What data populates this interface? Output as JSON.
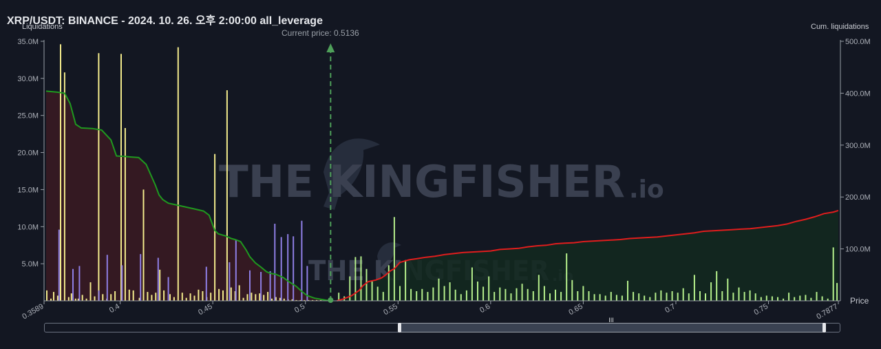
{
  "header": {
    "title": "XRP/USDT: BINANCE - 2024. 10. 26. 오후 2:00:00 all_leverage",
    "left_axis_name": "Liquidations",
    "right_axis_name": "Cum. liquidations",
    "price_axis_name": "Price",
    "current_price_label": "Current price: 0.5136"
  },
  "watermark": {
    "text": "THE KINGFISHER",
    "suffix": ".io"
  },
  "colors": {
    "long_bar": "#f3eb8c",
    "short_bar": "#b6f08c",
    "purple_bar": "#8f7fe6",
    "cum_long_line": "#1f9a1f",
    "cum_short_line": "#e11d1d",
    "long_area": "#3b1a22",
    "short_area": "#13291f",
    "current_price_line": "#4fa05a"
  },
  "slider": {
    "grip_label": "III"
  },
  "chart_data": {
    "type": "bar",
    "title": "XRP/USDT: BINANCE - 2024. 10. 26. 오후 2:00:00 all_leverage",
    "xlabel": "Price",
    "ylabel_left": "Liquidations",
    "ylabel_right": "Cum. liquidations",
    "x_range": [
      0.3589,
      0.7877
    ],
    "x_ticks": [
      "0.3589",
      "0.4",
      "0.45",
      "0.5",
      "0.55",
      "0.6",
      "0.65",
      "0.7",
      "0.75",
      "0.7877"
    ],
    "x_tick_values": [
      0.3589,
      0.4,
      0.45,
      0.5,
      0.55,
      0.6,
      0.65,
      0.7,
      0.75,
      0.7877
    ],
    "ylim_left": [
      0,
      35000000
    ],
    "y_ticks_left": [
      "5.0M",
      "10.0M",
      "15.0M",
      "20.0M",
      "25.0M",
      "30.0M",
      "35.0M"
    ],
    "y_tick_values_left": [
      5000000,
      10000000,
      15000000,
      20000000,
      25000000,
      30000000,
      35000000
    ],
    "ylim_right": [
      0,
      500000000
    ],
    "y_ticks_right": [
      "100.0M",
      "200.0M",
      "300.0M",
      "400.0M",
      "500.0M"
    ],
    "y_tick_values_right": [
      100000000,
      200000000,
      300000000,
      400000000,
      500000000
    ],
    "current_price": 0.5136,
    "grid": false,
    "series": [
      {
        "name": "long_liquidations",
        "kind": "bar",
        "x": [
          0.3604,
          0.3626,
          0.3641,
          0.3663,
          0.3678,
          0.37,
          0.3722,
          0.3737,
          0.3759,
          0.3774,
          0.3796,
          0.3818,
          0.384,
          0.3862,
          0.3884,
          0.3906,
          0.3928,
          0.395,
          0.3972,
          0.4005,
          0.4027,
          0.4049,
          0.4071,
          0.4104,
          0.4126,
          0.4148,
          0.417,
          0.4192,
          0.4214,
          0.4236,
          0.4269,
          0.4291,
          0.4313,
          0.4335,
          0.4357,
          0.4379,
          0.4401,
          0.4423,
          0.4445,
          0.4467,
          0.4489,
          0.4511,
          0.4533,
          0.4555,
          0.4577,
          0.4599,
          0.4621,
          0.4643,
          0.4665,
          0.4687,
          0.4709,
          0.4731,
          0.4753,
          0.4775,
          0.4797,
          0.4819,
          0.4841,
          0.4863,
          0.4885,
          0.4907,
          0.4929,
          0.4951,
          0.4973,
          0.4995,
          0.5017,
          0.5039,
          0.5061,
          0.5083
        ],
        "values": [
          1400000,
          300000,
          1200000,
          700000,
          34600000,
          30800000,
          500000,
          1000000,
          300000,
          300000,
          800000,
          300000,
          2500000,
          600000,
          33400000,
          900000,
          300000,
          900000,
          1300000,
          33300000,
          23300000,
          1500000,
          1400000,
          400000,
          15000000,
          1200000,
          800000,
          1100000,
          4200000,
          1400000,
          900000,
          500000,
          34200000,
          1100000,
          400000,
          1000000,
          700000,
          1500000,
          1300000,
          500000,
          1100000,
          19800000,
          1600000,
          1400000,
          28400000,
          1800000,
          1300000,
          2100000,
          400000,
          900000,
          1100000,
          900000,
          1000000,
          800000,
          1200000,
          300000,
          500000,
          400000,
          300000,
          200000,
          200000,
          100000,
          100000,
          100000,
          100000,
          100000,
          100000,
          100000
        ]
      },
      {
        "name": "purple_liquidations",
        "kind": "bar",
        "x": [
          0.367,
          0.3745,
          0.378,
          0.3885,
          0.393,
          0.401,
          0.411,
          0.4205,
          0.426,
          0.4465,
          0.459,
          0.4625,
          0.47,
          0.476,
          0.481,
          0.4835,
          0.487,
          0.4905,
          0.4935,
          0.498,
          0.501
        ],
        "values": [
          9600000,
          4300000,
          4700000,
          1400000,
          6200000,
          4800000,
          6300000,
          5800000,
          3200000,
          4600000,
          5200000,
          8200000,
          4100000,
          3900000,
          4000000,
          10400000,
          8600000,
          9000000,
          8700000,
          10800000,
          4700000
        ],
        "color_key": "purple_bar"
      },
      {
        "name": "short_liquidations",
        "kind": "bar",
        "x": [
          0.518,
          0.521,
          0.524,
          0.527,
          0.53,
          0.533,
          0.536,
          0.539,
          0.542,
          0.545,
          0.548,
          0.551,
          0.554,
          0.557,
          0.56,
          0.563,
          0.566,
          0.569,
          0.572,
          0.575,
          0.578,
          0.581,
          0.584,
          0.587,
          0.59,
          0.593,
          0.596,
          0.599,
          0.602,
          0.605,
          0.608,
          0.611,
          0.614,
          0.617,
          0.62,
          0.623,
          0.626,
          0.629,
          0.632,
          0.635,
          0.638,
          0.641,
          0.644,
          0.647,
          0.65,
          0.653,
          0.656,
          0.659,
          0.662,
          0.665,
          0.668,
          0.671,
          0.674,
          0.677,
          0.68,
          0.683,
          0.686,
          0.689,
          0.692,
          0.695,
          0.698,
          0.701,
          0.704,
          0.707,
          0.71,
          0.713,
          0.716,
          0.719,
          0.722,
          0.725,
          0.728,
          0.731,
          0.734,
          0.737,
          0.74,
          0.743,
          0.746,
          0.749,
          0.752,
          0.755,
          0.758,
          0.761,
          0.764,
          0.767,
          0.77,
          0.773,
          0.776,
          0.779,
          0.782,
          0.785,
          0.787
        ],
        "values": [
          1100000,
          600000,
          3300000,
          5900000,
          6000000,
          4300000,
          2600000,
          1900000,
          1200000,
          4800000,
          11300000,
          2000000,
          5500000,
          1600000,
          1300000,
          1600000,
          1200000,
          1800000,
          3000000,
          2000000,
          2500000,
          1500000,
          900000,
          1400000,
          4500000,
          2600000,
          1900000,
          3300000,
          1200000,
          1800000,
          1600000,
          1000000,
          1700000,
          2300000,
          1600000,
          1300000,
          3500000,
          2000000,
          1000000,
          1500000,
          1200000,
          6400000,
          2800000,
          1300000,
          2000000,
          1300000,
          900000,
          900000,
          700000,
          1200000,
          800000,
          700000,
          2700000,
          1200000,
          1000000,
          700000,
          500000,
          1100000,
          1400000,
          1100000,
          1300000,
          1100000,
          1700000,
          1000000,
          3500000,
          1300000,
          1000000,
          2500000,
          4000000,
          1300000,
          3000000,
          1100000,
          1800000,
          1200000,
          1400000,
          1000000,
          500000,
          700000,
          600000,
          500000,
          300000,
          1100000,
          500000,
          700000,
          800000,
          400000,
          1200000,
          600000,
          300000,
          7200000,
          2400000
        ]
      },
      {
        "name": "cum_long",
        "kind": "line",
        "axis": "right",
        "x": [
          0.36,
          0.366,
          0.37,
          0.373,
          0.376,
          0.379,
          0.385,
          0.39,
          0.395,
          0.398,
          0.403,
          0.406,
          0.41,
          0.414,
          0.419,
          0.421,
          0.423,
          0.426,
          0.43,
          0.435,
          0.44,
          0.445,
          0.448,
          0.451,
          0.453,
          0.457,
          0.46,
          0.462,
          0.465,
          0.468,
          0.47,
          0.473,
          0.476,
          0.479,
          0.481,
          0.484,
          0.488,
          0.491,
          0.495,
          0.498,
          0.501,
          0.505,
          0.51,
          0.513
        ],
        "values": [
          404000000,
          402000000,
          400000000,
          380000000,
          340000000,
          333000000,
          332000000,
          329000000,
          310000000,
          279000000,
          278000000,
          277000000,
          276000000,
          263000000,
          223000000,
          204000000,
          195000000,
          188000000,
          185000000,
          181000000,
          177000000,
          173000000,
          165000000,
          136000000,
          129000000,
          125000000,
          120000000,
          118000000,
          114000000,
          98000000,
          85000000,
          73000000,
          65000000,
          56000000,
          53000000,
          51000000,
          45000000,
          37000000,
          28000000,
          18000000,
          10000000,
          5000000,
          2000000,
          0
        ],
        "color_key": "cum_long_line"
      },
      {
        "name": "cum_short",
        "kind": "line",
        "axis": "right",
        "x": [
          0.517,
          0.52,
          0.525,
          0.529,
          0.531,
          0.534,
          0.538,
          0.541,
          0.543,
          0.546,
          0.548,
          0.551,
          0.556,
          0.56,
          0.565,
          0.57,
          0.575,
          0.58,
          0.585,
          0.59,
          0.595,
          0.6,
          0.605,
          0.61,
          0.615,
          0.62,
          0.625,
          0.63,
          0.635,
          0.64,
          0.645,
          0.65,
          0.655,
          0.66,
          0.665,
          0.67,
          0.675,
          0.68,
          0.685,
          0.69,
          0.695,
          0.7,
          0.705,
          0.71,
          0.715,
          0.72,
          0.725,
          0.73,
          0.735,
          0.74,
          0.745,
          0.75,
          0.755,
          0.76,
          0.765,
          0.77,
          0.775,
          0.78,
          0.785,
          0.7877
        ],
        "values": [
          0,
          3000000,
          10000000,
          20000000,
          29000000,
          37000000,
          40000000,
          44000000,
          49000000,
          58000000,
          62000000,
          74000000,
          79000000,
          81000000,
          84000000,
          86000000,
          89000000,
          91000000,
          93000000,
          94000000,
          95000000,
          96000000,
          99000000,
          100000000,
          101000000,
          104000000,
          106000000,
          107000000,
          110000000,
          111000000,
          112000000,
          114000000,
          115000000,
          116000000,
          117000000,
          118000000,
          120000000,
          121000000,
          122000000,
          123000000,
          125000000,
          127000000,
          129000000,
          131000000,
          134000000,
          135000000,
          136000000,
          137000000,
          138000000,
          139000000,
          141000000,
          143000000,
          145000000,
          148000000,
          153000000,
          157000000,
          162000000,
          168000000,
          171000000,
          174000000
        ],
        "color_key": "cum_short_line"
      }
    ]
  }
}
